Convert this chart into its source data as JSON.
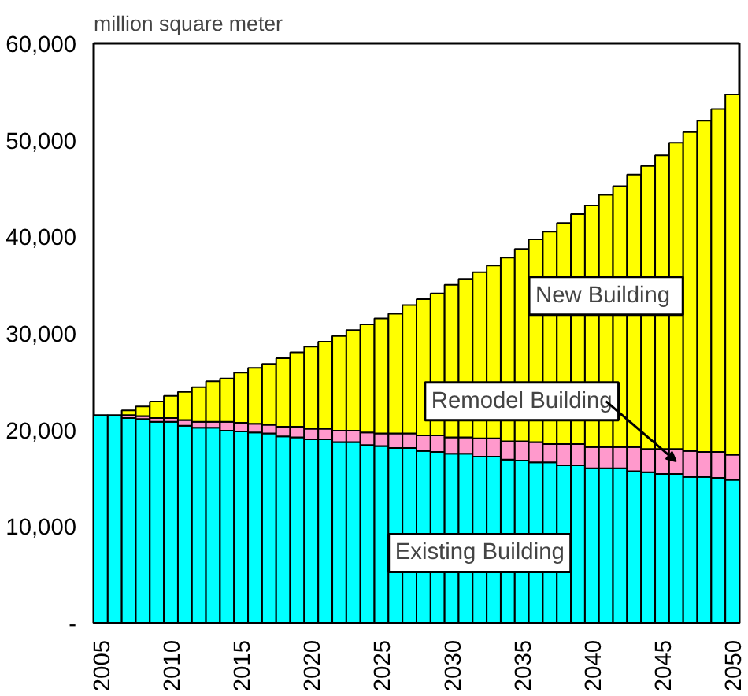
{
  "chart_data": {
    "type": "bar",
    "stacked": true,
    "ylabel": "million square meter",
    "categories": [
      "2005",
      null,
      null,
      null,
      null,
      "2010",
      null,
      null,
      null,
      null,
      "2015",
      null,
      null,
      null,
      null,
      "2020",
      null,
      null,
      null,
      null,
      "2025",
      null,
      null,
      null,
      null,
      "2030",
      null,
      null,
      null,
      null,
      "2035",
      null,
      null,
      null,
      null,
      "2040",
      null,
      null,
      null,
      null,
      "2045",
      null,
      null,
      null,
      null,
      "2050"
    ],
    "series": [
      {
        "name": "Existing Building",
        "color": "#00ffff",
        "values": [
          21500,
          21500,
          21200,
          21100,
          20800,
          20800,
          20400,
          20200,
          20200,
          19900,
          19800,
          19700,
          19600,
          19300,
          19200,
          19000,
          19000,
          18700,
          18700,
          18400,
          18300,
          18100,
          18100,
          17800,
          17700,
          17500,
          17500,
          17200,
          17200,
          16900,
          16800,
          16600,
          16600,
          16300,
          16300,
          16000,
          16000,
          16000,
          15700,
          15600,
          15400,
          15400,
          15100,
          15100,
          15000,
          14800
        ]
      },
      {
        "name": "Remodel Building",
        "color": "#ff99cc",
        "values": [
          null,
          null,
          300,
          300,
          400,
          400,
          600,
          600,
          600,
          900,
          900,
          900,
          900,
          1000,
          1100,
          1100,
          1100,
          1200,
          1200,
          1300,
          1300,
          1500,
          1500,
          1600,
          1700,
          1700,
          1700,
          1900,
          1900,
          1900,
          2000,
          2100,
          1900,
          2200,
          2200,
          2200,
          2200,
          2200,
          2500,
          2400,
          2600,
          2600,
          2700,
          2600,
          2700,
          2600
        ]
      },
      {
        "name": "New  Building",
        "color": "#ffff00",
        "values": [
          null,
          null,
          500,
          1000,
          1700,
          2300,
          2900,
          3600,
          4200,
          4500,
          5200,
          5800,
          6300,
          7100,
          7700,
          8500,
          9000,
          9800,
          10400,
          11200,
          11900,
          12400,
          13300,
          14100,
          14700,
          15800,
          16400,
          17200,
          17900,
          19000,
          19900,
          21000,
          22000,
          22900,
          23800,
          25000,
          26100,
          27000,
          28200,
          29300,
          30400,
          31700,
          33000,
          34300,
          35500,
          37300
        ]
      }
    ],
    "ylim": [
      0,
      60000
    ],
    "yticks": [
      {
        "value": 0,
        "label": "-"
      },
      {
        "value": 10000,
        "label": "10,000"
      },
      {
        "value": 20000,
        "label": "20,000"
      },
      {
        "value": 30000,
        "label": "30,000"
      },
      {
        "value": 40000,
        "label": "40,000"
      },
      {
        "value": 50000,
        "label": "50,000"
      },
      {
        "value": 60000,
        "label": "60,000"
      }
    ],
    "grid": false
  }
}
